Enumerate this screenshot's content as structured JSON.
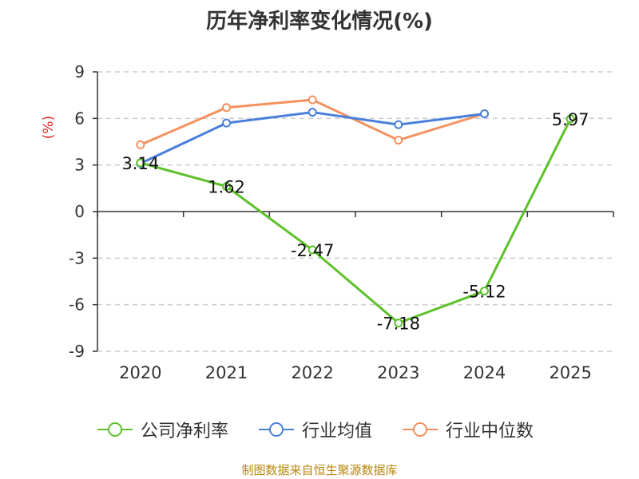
{
  "chart_data": {
    "type": "line",
    "title": "历年净利率变化情况(%)",
    "ylabel": "(%)",
    "categories": [
      "2020",
      "2021",
      "2022",
      "2023",
      "2024",
      "2025"
    ],
    "ylim": [
      -9,
      9
    ],
    "yticks": [
      "9",
      "6",
      "3",
      "0",
      "-3",
      "-6",
      "-9"
    ],
    "grid": true,
    "legend_position": "bottom",
    "series": [
      {
        "name": "公司净利率",
        "color": "#5dc12a",
        "values": [
          3.14,
          1.62,
          -2.47,
          -7.18,
          -5.12,
          5.97
        ],
        "labels": [
          "3.14",
          "1.62",
          "-2.47",
          "-7.18",
          "-5.12",
          "5.97"
        ]
      },
      {
        "name": "行业均值",
        "color": "#4a7fdc",
        "values": [
          3.1,
          5.7,
          6.4,
          5.6,
          6.3,
          null
        ]
      },
      {
        "name": "行业中位数",
        "color": "#f4915f",
        "values": [
          4.3,
          6.7,
          7.2,
          4.6,
          6.3,
          null
        ]
      }
    ]
  },
  "footer": {
    "source": "制图数据来自恒生聚源数据库"
  }
}
